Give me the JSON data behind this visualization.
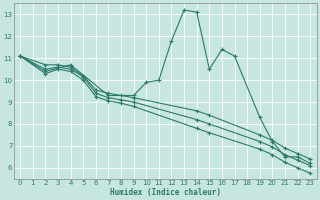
{
  "xlabel": "Humidex (Indice chaleur)",
  "bg_color": "#c8e6e0",
  "grid_color": "#b0d8d0",
  "line_color": "#2a7a6a",
  "xlim": [
    -0.5,
    23.5
  ],
  "ylim": [
    5.5,
    13.5
  ],
  "yticks": [
    6,
    7,
    8,
    9,
    10,
    11,
    12,
    13
  ],
  "xticks": [
    0,
    1,
    2,
    3,
    4,
    5,
    6,
    7,
    8,
    9,
    10,
    11,
    12,
    13,
    14,
    15,
    16,
    17,
    18,
    19,
    20,
    21,
    22,
    23
  ],
  "series": [
    {
      "x": [
        0,
        2,
        4,
        7,
        9,
        10,
        11,
        12,
        13,
        14,
        15,
        16,
        17,
        19,
        20,
        21,
        22,
        23
      ],
      "y": [
        11.1,
        10.4,
        10.7,
        9.3,
        9.3,
        9.9,
        10.0,
        11.8,
        13.2,
        13.1,
        10.5,
        11.4,
        11.1,
        8.3,
        7.2,
        6.5,
        6.5,
        6.2
      ]
    },
    {
      "x": [
        0,
        2,
        3,
        4,
        5,
        6,
        7,
        8,
        9,
        14,
        15,
        19,
        20,
        21,
        22,
        23
      ],
      "y": [
        11.1,
        10.7,
        10.7,
        10.6,
        10.2,
        9.55,
        9.4,
        9.3,
        9.2,
        8.6,
        8.4,
        7.5,
        7.25,
        6.9,
        6.65,
        6.4
      ]
    },
    {
      "x": [
        0,
        2,
        3,
        4,
        5,
        6,
        7,
        8,
        9,
        14,
        15,
        19,
        20,
        21,
        22,
        23
      ],
      "y": [
        11.1,
        10.5,
        10.6,
        10.5,
        10.15,
        9.4,
        9.2,
        9.1,
        9.0,
        8.2,
        8.0,
        7.2,
        6.95,
        6.6,
        6.35,
        6.1
      ]
    },
    {
      "x": [
        0,
        2,
        3,
        4,
        5,
        6,
        7,
        8,
        9,
        14,
        15,
        19,
        20,
        21,
        22,
        23
      ],
      "y": [
        11.1,
        10.3,
        10.5,
        10.4,
        10.0,
        9.25,
        9.05,
        8.95,
        8.8,
        7.8,
        7.6,
        6.85,
        6.6,
        6.25,
        6.0,
        5.75
      ]
    }
  ]
}
